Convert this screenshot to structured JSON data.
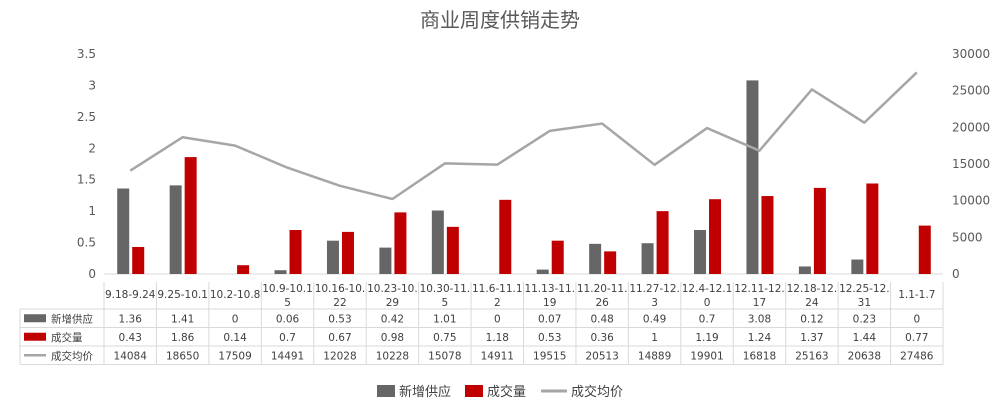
{
  "chart_data": {
    "type": "bar",
    "title": "商业周度供销走势",
    "categories": [
      "9.18-9.24",
      "9.25-10.1",
      "10.2-10.8",
      "10.9-10.15",
      "10.16-10.22",
      "10.23-10.29",
      "10.30-11.5",
      "11.6-11.12",
      "11.13-11.19",
      "11.20-11.26",
      "11.27-12.3",
      "12.4-12.10",
      "12.11-12.17",
      "12.18-12.24",
      "12.25-12.31",
      "1.1-1.7"
    ],
    "category_lines": [
      [
        "9.18-9.24"
      ],
      [
        "9.25-10.1"
      ],
      [
        "10.2-10.8"
      ],
      [
        "10.9-10.1",
        "5"
      ],
      [
        "10.16-10.",
        "22"
      ],
      [
        "10.23-10.",
        "29"
      ],
      [
        "10.30-11.",
        "5"
      ],
      [
        "11.6-11.1",
        "2"
      ],
      [
        "11.13-11.",
        "19"
      ],
      [
        "11.20-11.",
        "26"
      ],
      [
        "11.27-12.",
        "3"
      ],
      [
        "12.4-12.1",
        "0"
      ],
      [
        "12.11-12.",
        "17"
      ],
      [
        "12.18-12.",
        "24"
      ],
      [
        "12.25-12.",
        "31"
      ],
      [
        "1.1-1.7"
      ]
    ],
    "series": [
      {
        "name": "新增供应",
        "type": "bar",
        "axis": "left",
        "color": "#666666",
        "values": [
          1.36,
          1.41,
          0,
          0.06,
          0.53,
          0.42,
          1.01,
          0,
          0.07,
          0.48,
          0.49,
          0.7,
          3.08,
          0.12,
          0.23,
          0
        ]
      },
      {
        "name": "成交量",
        "type": "bar",
        "axis": "left",
        "color": "#C00000",
        "values": [
          0.43,
          1.86,
          0.14,
          0.7,
          0.67,
          0.98,
          0.75,
          1.18,
          0.53,
          0.36,
          1,
          1.19,
          1.24,
          1.37,
          1.44,
          0.77
        ]
      },
      {
        "name": "成交均价",
        "type": "line",
        "axis": "right",
        "color": "#A6A6A6",
        "values": [
          14084,
          18650,
          17509,
          14491,
          12028,
          10228,
          15078,
          14911,
          19515,
          20513,
          14889,
          19901,
          16818,
          25163,
          20638,
          27486
        ]
      }
    ],
    "table_values": [
      [
        "1.36",
        "1.41",
        "0",
        "0.06",
        "0.53",
        "0.42",
        "1.01",
        "0",
        "0.07",
        "0.48",
        "0.49",
        "0.7",
        "3.08",
        "0.12",
        "0.23",
        "0"
      ],
      [
        "0.43",
        "1.86",
        "0.14",
        "0.7",
        "0.67",
        "0.98",
        "0.75",
        "1.18",
        "0.53",
        "0.36",
        "1",
        "1.19",
        "1.24",
        "1.37",
        "1.44",
        "0.77"
      ],
      [
        "14084",
        "18650",
        "17509",
        "14491",
        "12028",
        "10228",
        "15078",
        "14911",
        "19515",
        "20513",
        "14889",
        "19901",
        "16818",
        "25163",
        "20638",
        "27486"
      ]
    ],
    "y_left": {
      "min": 0,
      "max": 3.5,
      "ticks": [
        "0",
        "0.5",
        "1",
        "1.5",
        "2",
        "2.5",
        "3",
        "3.5"
      ]
    },
    "y_right": {
      "min": 0,
      "max": 30000,
      "ticks": [
        "0",
        "5000",
        "10000",
        "15000",
        "20000",
        "25000",
        "30000"
      ]
    },
    "legend": [
      "新增供应",
      "成交量",
      "成交均价"
    ],
    "legend_position": "bottom",
    "grid": false
  }
}
